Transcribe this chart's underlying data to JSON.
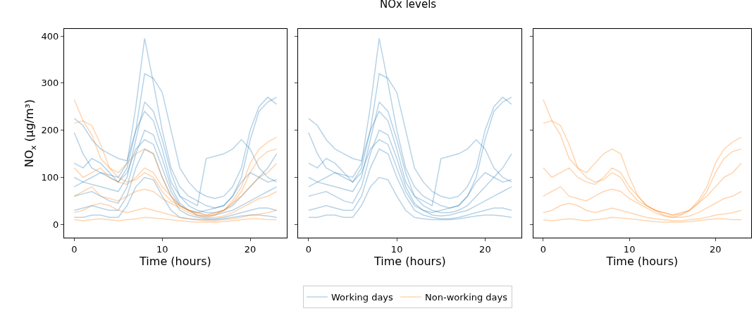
{
  "chart_data": [
    {
      "type": "line",
      "xlabel": "Time (hours)",
      "ylabel": "NO$_{x}$ (μg/m³)",
      "legend": "bottom",
      "grid": false,
      "xlim": [
        -1.15,
        24.15
      ],
      "xticks": [
        0,
        10,
        20
      ],
      "ylim": [
        -28,
        415
      ],
      "yticks": [
        0,
        100,
        200,
        300,
        400
      ],
      "x": [
        0,
        1,
        2,
        3,
        4,
        5,
        6,
        7,
        8,
        9,
        10,
        11,
        12,
        13,
        14,
        15,
        16,
        17,
        18,
        19,
        20,
        21,
        22,
        23
      ],
      "series": [
        {
          "name": "Working days",
          "color": "#1f77b4",
          "values": [
            195,
            150,
            120,
            110,
            105,
            100,
            130,
            250,
            395,
            300,
            200,
            120,
            80,
            60,
            50,
            40,
            35,
            40,
            60,
            100,
            180,
            240,
            260,
            270
          ]
        },
        {
          "color": "#1f77b4",
          "values": [
            225,
            210,
            180,
            160,
            150,
            140,
            135,
            200,
            320,
            310,
            280,
            200,
            120,
            90,
            70,
            60,
            55,
            60,
            80,
            120,
            200,
            250,
            270,
            255
          ]
        },
        {
          "color": "#1f77b4",
          "values": [
            100,
            90,
            85,
            80,
            75,
            70,
            100,
            180,
            260,
            240,
            180,
            110,
            60,
            40,
            30,
            25,
            25,
            30,
            40,
            60,
            80,
            100,
            120,
            150
          ]
        },
        {
          "color": "#1f77b4",
          "values": [
            60,
            65,
            70,
            60,
            50,
            45,
            80,
            150,
            200,
            190,
            140,
            80,
            45,
            30,
            20,
            18,
            20,
            25,
            30,
            40,
            50,
            60,
            70,
            80
          ]
        },
        {
          "color": "#1f77b4",
          "values": [
            30,
            35,
            40,
            35,
            30,
            30,
            60,
            120,
            160,
            150,
            100,
            60,
            30,
            20,
            15,
            12,
            12,
            15,
            20,
            25,
            30,
            35,
            35,
            30
          ]
        },
        {
          "color": "#1f77b4",
          "values": [
            15,
            15,
            20,
            20,
            15,
            15,
            40,
            80,
            100,
            95,
            60,
            30,
            15,
            12,
            10,
            10,
            10,
            12,
            15,
            18,
            20,
            20,
            18,
            15
          ]
        },
        {
          "color": "#1f77b4",
          "values": [
            130,
            120,
            140,
            130,
            110,
            90,
            120,
            200,
            240,
            220,
            160,
            90,
            60,
            50,
            40,
            140,
            145,
            150,
            160,
            180,
            160,
            120,
            100,
            90
          ]
        },
        {
          "color": "#1f77b4",
          "values": [
            80,
            90,
            100,
            110,
            100,
            90,
            110,
            160,
            180,
            170,
            120,
            70,
            40,
            30,
            25,
            30,
            35,
            40,
            60,
            90,
            110,
            100,
            90,
            95
          ]
        },
        {
          "name": "Non-working days",
          "color": "#ff7f0e",
          "values": [
            265,
            220,
            210,
            170,
            120,
            100,
            90,
            95,
            110,
            100,
            70,
            50,
            40,
            30,
            25,
            20,
            22,
            30,
            50,
            80,
            130,
            160,
            175,
            185
          ]
        },
        {
          "color": "#ff7f0e",
          "values": [
            215,
            220,
            190,
            140,
            120,
            110,
            130,
            150,
            160,
            150,
            100,
            60,
            40,
            30,
            25,
            20,
            25,
            30,
            45,
            70,
            110,
            140,
            155,
            160
          ]
        },
        {
          "color": "#ff7f0e",
          "values": [
            120,
            100,
            110,
            120,
            100,
            90,
            85,
            100,
            120,
            110,
            80,
            60,
            40,
            30,
            20,
            15,
            20,
            30,
            45,
            60,
            80,
            100,
            110,
            130
          ]
        },
        {
          "color": "#ff7f0e",
          "values": [
            60,
            70,
            80,
            60,
            55,
            50,
            60,
            70,
            75,
            70,
            55,
            45,
            35,
            25,
            18,
            15,
            15,
            18,
            25,
            35,
            45,
            55,
            60,
            70
          ]
        },
        {
          "color": "#ff7f0e",
          "values": [
            25,
            30,
            40,
            45,
            40,
            30,
            25,
            30,
            35,
            30,
            25,
            20,
            15,
            12,
            10,
            8,
            8,
            10,
            12,
            15,
            20,
            22,
            25,
            30
          ]
        },
        {
          "color": "#ff7f0e",
          "values": [
            10,
            8,
            10,
            12,
            10,
            8,
            10,
            12,
            15,
            14,
            12,
            10,
            8,
            6,
            5,
            5,
            5,
            6,
            8,
            10,
            12,
            12,
            10,
            10
          ]
        }
      ]
    },
    {
      "type": "line",
      "title": "NOx levels",
      "xlabel": "Time (hours)",
      "grid": false,
      "tick_labels": "x",
      "xlim": [
        -1.15,
        24.15
      ],
      "xticks": [
        0,
        10,
        20
      ],
      "ylim": [
        -28,
        415
      ],
      "yticks": [
        0,
        100,
        200,
        300,
        400
      ],
      "x": [
        0,
        1,
        2,
        3,
        4,
        5,
        6,
        7,
        8,
        9,
        10,
        11,
        12,
        13,
        14,
        15,
        16,
        17,
        18,
        19,
        20,
        21,
        22,
        23
      ],
      "series": [
        {
          "color": "#1f77b4",
          "values": [
            195,
            150,
            120,
            110,
            105,
            100,
            130,
            250,
            395,
            300,
            200,
            120,
            80,
            60,
            50,
            40,
            35,
            40,
            60,
            100,
            180,
            240,
            260,
            270
          ]
        },
        {
          "color": "#1f77b4",
          "values": [
            225,
            210,
            180,
            160,
            150,
            140,
            135,
            200,
            320,
            310,
            280,
            200,
            120,
            90,
            70,
            60,
            55,
            60,
            80,
            120,
            200,
            250,
            270,
            255
          ]
        },
        {
          "color": "#1f77b4",
          "values": [
            100,
            90,
            85,
            80,
            75,
            70,
            100,
            180,
            260,
            240,
            180,
            110,
            60,
            40,
            30,
            25,
            25,
            30,
            40,
            60,
            80,
            100,
            120,
            150
          ]
        },
        {
          "color": "#1f77b4",
          "values": [
            60,
            65,
            70,
            60,
            50,
            45,
            80,
            150,
            200,
            190,
            140,
            80,
            45,
            30,
            20,
            18,
            20,
            25,
            30,
            40,
            50,
            60,
            70,
            80
          ]
        },
        {
          "color": "#1f77b4",
          "values": [
            30,
            35,
            40,
            35,
            30,
            30,
            60,
            120,
            160,
            150,
            100,
            60,
            30,
            20,
            15,
            12,
            12,
            15,
            20,
            25,
            30,
            35,
            35,
            30
          ]
        },
        {
          "color": "#1f77b4",
          "values": [
            15,
            15,
            20,
            20,
            15,
            15,
            40,
            80,
            100,
            95,
            60,
            30,
            15,
            12,
            10,
            10,
            10,
            12,
            15,
            18,
            20,
            20,
            18,
            15
          ]
        },
        {
          "color": "#1f77b4",
          "values": [
            130,
            120,
            140,
            130,
            110,
            90,
            120,
            200,
            240,
            220,
            160,
            90,
            60,
            50,
            40,
            140,
            145,
            150,
            160,
            180,
            160,
            120,
            100,
            90
          ]
        },
        {
          "color": "#1f77b4",
          "values": [
            80,
            90,
            100,
            110,
            100,
            90,
            110,
            160,
            180,
            170,
            120,
            70,
            40,
            30,
            25,
            30,
            35,
            40,
            60,
            90,
            110,
            100,
            90,
            95
          ]
        }
      ]
    },
    {
      "type": "line",
      "xlabel": "Time (hours)",
      "grid": false,
      "tick_labels": "x",
      "xlim": [
        -1.15,
        24.15
      ],
      "xticks": [
        0,
        10,
        20
      ],
      "ylim": [
        -28,
        415
      ],
      "yticks": [
        0,
        100,
        200,
        300,
        400
      ],
      "x": [
        0,
        1,
        2,
        3,
        4,
        5,
        6,
        7,
        8,
        9,
        10,
        11,
        12,
        13,
        14,
        15,
        16,
        17,
        18,
        19,
        20,
        21,
        22,
        23
      ],
      "series": [
        {
          "color": "#ff7f0e",
          "values": [
            265,
            220,
            210,
            170,
            120,
            100,
            90,
            95,
            110,
            100,
            70,
            50,
            40,
            30,
            25,
            20,
            22,
            30,
            50,
            80,
            130,
            160,
            175,
            185
          ]
        },
        {
          "color": "#ff7f0e",
          "values": [
            215,
            220,
            190,
            140,
            120,
            110,
            130,
            150,
            160,
            150,
            100,
            60,
            40,
            30,
            25,
            20,
            25,
            30,
            45,
            70,
            110,
            140,
            155,
            160
          ]
        },
        {
          "color": "#ff7f0e",
          "values": [
            120,
            100,
            110,
            120,
            100,
            90,
            85,
            100,
            120,
            110,
            80,
            60,
            40,
            30,
            20,
            15,
            20,
            30,
            45,
            60,
            80,
            100,
            110,
            130
          ]
        },
        {
          "color": "#ff7f0e",
          "values": [
            60,
            70,
            80,
            60,
            55,
            50,
            60,
            70,
            75,
            70,
            55,
            45,
            35,
            25,
            18,
            15,
            15,
            18,
            25,
            35,
            45,
            55,
            60,
            70
          ]
        },
        {
          "color": "#ff7f0e",
          "values": [
            25,
            30,
            40,
            45,
            40,
            30,
            25,
            30,
            35,
            30,
            25,
            20,
            15,
            12,
            10,
            8,
            8,
            10,
            12,
            15,
            20,
            22,
            25,
            30
          ]
        },
        {
          "color": "#ff7f0e",
          "values": [
            10,
            8,
            10,
            12,
            10,
            8,
            10,
            12,
            15,
            14,
            12,
            10,
            8,
            6,
            5,
            5,
            5,
            6,
            8,
            10,
            12,
            12,
            10,
            10
          ]
        }
      ]
    }
  ]
}
